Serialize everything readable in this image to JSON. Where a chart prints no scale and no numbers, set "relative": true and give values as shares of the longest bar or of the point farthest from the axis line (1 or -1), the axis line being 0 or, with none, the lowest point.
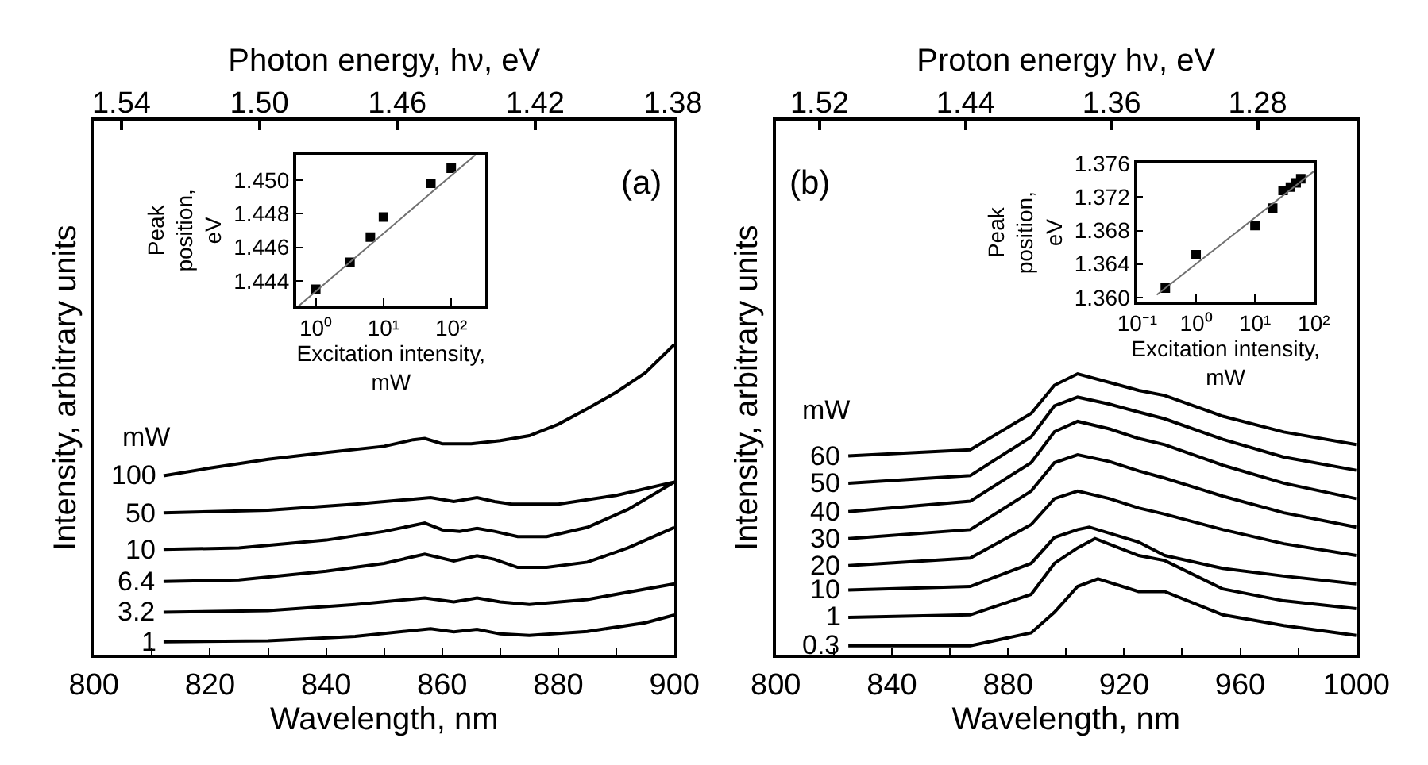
{
  "chart_data": [
    {
      "type": "line",
      "xlabel": "Wavelength, nm",
      "ylabel": "Intensity, arbitrary units",
      "x2label": "Photon energy, hν, eV",
      "relative": true,
      "annotations": [
        "(a)",
        "mW"
      ],
      "xlim": [
        800,
        900
      ],
      "xticks": [
        800,
        {
          "value": 810,
          "label": null
        },
        820,
        {
          "value": 830,
          "label": null
        },
        840,
        {
          "value": 850,
          "label": null
        },
        860,
        {
          "value": 870,
          "label": null
        },
        880,
        {
          "value": 890,
          "label": null
        },
        900
      ],
      "x2lim": [
        1.548,
        1.3796
      ],
      "x2ticks": [
        1.54,
        {
          "value": 1.5,
          "label": "1.50"
        },
        1.46,
        1.42,
        1.38
      ],
      "series": [
        {
          "name": "100",
          "color": "#000000",
          "x": [
            812,
            820,
            830,
            840,
            850,
            855,
            857,
            860,
            865,
            870,
            875,
            880,
            885,
            890,
            895,
            900
          ],
          "values": [
            0.577,
            0.602,
            0.63,
            0.652,
            0.672,
            0.693,
            0.697,
            0.68,
            0.68,
            0.69,
            0.706,
            0.743,
            0.793,
            0.846,
            0.909,
            1.0
          ]
        },
        {
          "name": "50",
          "color": "#000000",
          "x": [
            812,
            830,
            845,
            855,
            858,
            862,
            866,
            869,
            872,
            880,
            890,
            900
          ],
          "values": [
            0.458,
            0.466,
            0.486,
            0.502,
            0.507,
            0.494,
            0.507,
            0.494,
            0.486,
            0.486,
            0.514,
            0.557
          ]
        },
        {
          "name": "10",
          "color": "#000000",
          "x": [
            812,
            825,
            840,
            850,
            857,
            860,
            863,
            866,
            869,
            873,
            878,
            885,
            892,
            900
          ],
          "values": [
            0.34,
            0.345,
            0.37,
            0.398,
            0.425,
            0.403,
            0.398,
            0.408,
            0.398,
            0.381,
            0.381,
            0.411,
            0.469,
            0.557
          ]
        },
        {
          "name": "6.4",
          "color": "#000000",
          "x": [
            812,
            825,
            840,
            850,
            857,
            862,
            866,
            869,
            873,
            878,
            885,
            892,
            900
          ],
          "values": [
            0.237,
            0.242,
            0.27,
            0.295,
            0.325,
            0.303,
            0.32,
            0.308,
            0.282,
            0.282,
            0.299,
            0.345,
            0.411
          ]
        },
        {
          "name": "3.2",
          "color": "#000000",
          "x": [
            812,
            830,
            845,
            857,
            862,
            866,
            870,
            875,
            885,
            900
          ],
          "values": [
            0.138,
            0.143,
            0.163,
            0.184,
            0.171,
            0.184,
            0.171,
            0.163,
            0.179,
            0.229
          ]
        },
        {
          "name": "1",
          "color": "#000000",
          "x": [
            812,
            830,
            845,
            858,
            862,
            866,
            870,
            875,
            885,
            895,
            900
          ],
          "values": [
            0.043,
            0.046,
            0.06,
            0.085,
            0.075,
            0.083,
            0.068,
            0.063,
            0.076,
            0.104,
            0.129
          ]
        }
      ]
    },
    {
      "type": "scatter",
      "xlabel": "Excitation intensity,\nmW",
      "ylabel": "Peak\nposition,\neV",
      "log": "x",
      "xlim": [
        0.52,
        320
      ],
      "xticks": [
        {
          "value": 1,
          "label": "10⁰"
        },
        {
          "value": 10,
          "label": "10¹"
        },
        {
          "value": 100,
          "label": "10²"
        }
      ],
      "ylim": [
        1.4425,
        1.4515
      ],
      "yticks": [
        1.444,
        1.446,
        1.448,
        {
          "value": 1.45,
          "label": "1.450"
        }
      ],
      "series": [
        {
          "type": "scatter",
          "marker": "square",
          "color": "#000000",
          "x": [
            1,
            3.2,
            6.4,
            10,
            50,
            100
          ],
          "values": [
            1.4435,
            1.4451,
            1.4466,
            1.4478,
            1.4498,
            1.4507
          ]
        },
        {
          "type": "line",
          "color": "#707070",
          "x": [
            0.56,
            227
          ],
          "values": [
            1.4425,
            1.4515
          ]
        }
      ]
    },
    {
      "type": "line",
      "xlabel": "Wavelength, nm",
      "ylabel": "Intensity, arbitrary units",
      "x2label": "Proton energy hν, eV",
      "relative": true,
      "annotations": [
        "(b)",
        "mW"
      ],
      "xlim": [
        800,
        1000
      ],
      "xticks": [
        800,
        {
          "value": 820,
          "label": null
        },
        840,
        {
          "value": 860,
          "label": null
        },
        880,
        {
          "value": 900,
          "label": null
        },
        920,
        {
          "value": 940,
          "label": null
        },
        960,
        {
          "value": 980,
          "label": null
        },
        1000
      ],
      "x2lim": [
        1.544,
        1.226
      ],
      "x2ticks": [
        1.52,
        1.44,
        1.36,
        1.28
      ],
      "series": [
        {
          "name": "60",
          "color": "#000000",
          "x": [
            825,
            867,
            888,
            896,
            904,
            915,
            925,
            934,
            954,
            975,
            1000
          ],
          "values": [
            0.708,
            0.73,
            0.859,
            0.959,
            1.0,
            0.969,
            0.941,
            0.923,
            0.849,
            0.793,
            0.748
          ]
        },
        {
          "name": "50",
          "color": "#000000",
          "x": [
            825,
            867,
            888,
            896,
            904,
            915,
            925,
            934,
            954,
            975,
            1000
          ],
          "values": [
            0.611,
            0.638,
            0.776,
            0.886,
            0.917,
            0.892,
            0.864,
            0.84,
            0.767,
            0.704,
            0.657
          ]
        },
        {
          "name": "40",
          "color": "#000000",
          "x": [
            825,
            867,
            888,
            896,
            904,
            915,
            925,
            934,
            954,
            975,
            1000
          ],
          "values": [
            0.51,
            0.547,
            0.684,
            0.794,
            0.831,
            0.804,
            0.77,
            0.748,
            0.675,
            0.611,
            0.556
          ]
        },
        {
          "name": "30",
          "color": "#000000",
          "x": [
            825,
            867,
            888,
            896,
            904,
            915,
            925,
            934,
            954,
            975,
            1000
          ],
          "values": [
            0.414,
            0.446,
            0.583,
            0.684,
            0.712,
            0.688,
            0.655,
            0.629,
            0.565,
            0.506,
            0.455
          ]
        },
        {
          "name": "20",
          "color": "#000000",
          "x": [
            825,
            867,
            888,
            896,
            904,
            915,
            925,
            934,
            954,
            975,
            1000
          ],
          "values": [
            0.318,
            0.345,
            0.464,
            0.556,
            0.583,
            0.556,
            0.523,
            0.501,
            0.446,
            0.396,
            0.354
          ]
        },
        {
          "name": "10",
          "color": "#000000",
          "x": [
            825,
            867,
            888,
            896,
            904,
            908,
            925,
            934,
            954,
            975,
            1000
          ],
          "values": [
            0.231,
            0.244,
            0.326,
            0.418,
            0.446,
            0.455,
            0.402,
            0.354,
            0.308,
            0.281,
            0.253
          ]
        },
        {
          "name": "1",
          "color": "#000000",
          "x": [
            825,
            867,
            888,
            896,
            904,
            910,
            925,
            934,
            954,
            975,
            1000
          ],
          "values": [
            0.134,
            0.143,
            0.216,
            0.326,
            0.381,
            0.414,
            0.354,
            0.336,
            0.235,
            0.193,
            0.165
          ]
        },
        {
          "name": "0.3",
          "color": "#000000",
          "x": [
            825,
            867,
            888,
            896,
            904,
            911,
            925,
            934,
            954,
            975,
            1000
          ],
          "values": [
            0.033,
            0.033,
            0.079,
            0.152,
            0.244,
            0.271,
            0.226,
            0.226,
            0.143,
            0.105,
            0.07
          ]
        }
      ]
    },
    {
      "type": "scatter",
      "xlabel": "Excitation intensity,\nmW",
      "ylabel": "Peak\nposition,\neV",
      "log": "x",
      "xlim": [
        0.1,
        100
      ],
      "xticks": [
        {
          "value": 0.1,
          "label": "10⁻¹"
        },
        {
          "value": 1,
          "label": "10⁰"
        },
        {
          "value": 10,
          "label": "10¹"
        },
        {
          "value": 100,
          "label": "10²"
        }
      ],
      "ylim": [
        1.3595,
        1.376
      ],
      "yticks": [
        {
          "value": 1.36,
          "label": "1.360"
        },
        1.364,
        1.368,
        1.372,
        1.376
      ],
      "series": [
        {
          "type": "scatter",
          "marker": "square",
          "color": "#000000",
          "x": [
            0.3,
            1,
            10,
            20,
            30,
            40,
            50,
            60
          ],
          "values": [
            1.3611,
            1.3651,
            1.3686,
            1.3707,
            1.3728,
            1.3732,
            1.3737,
            1.3742
          ]
        },
        {
          "type": "line",
          "color": "#707070",
          "x": [
            0.215,
            100
          ],
          "values": [
            1.3603,
            1.3751
          ]
        }
      ]
    }
  ]
}
